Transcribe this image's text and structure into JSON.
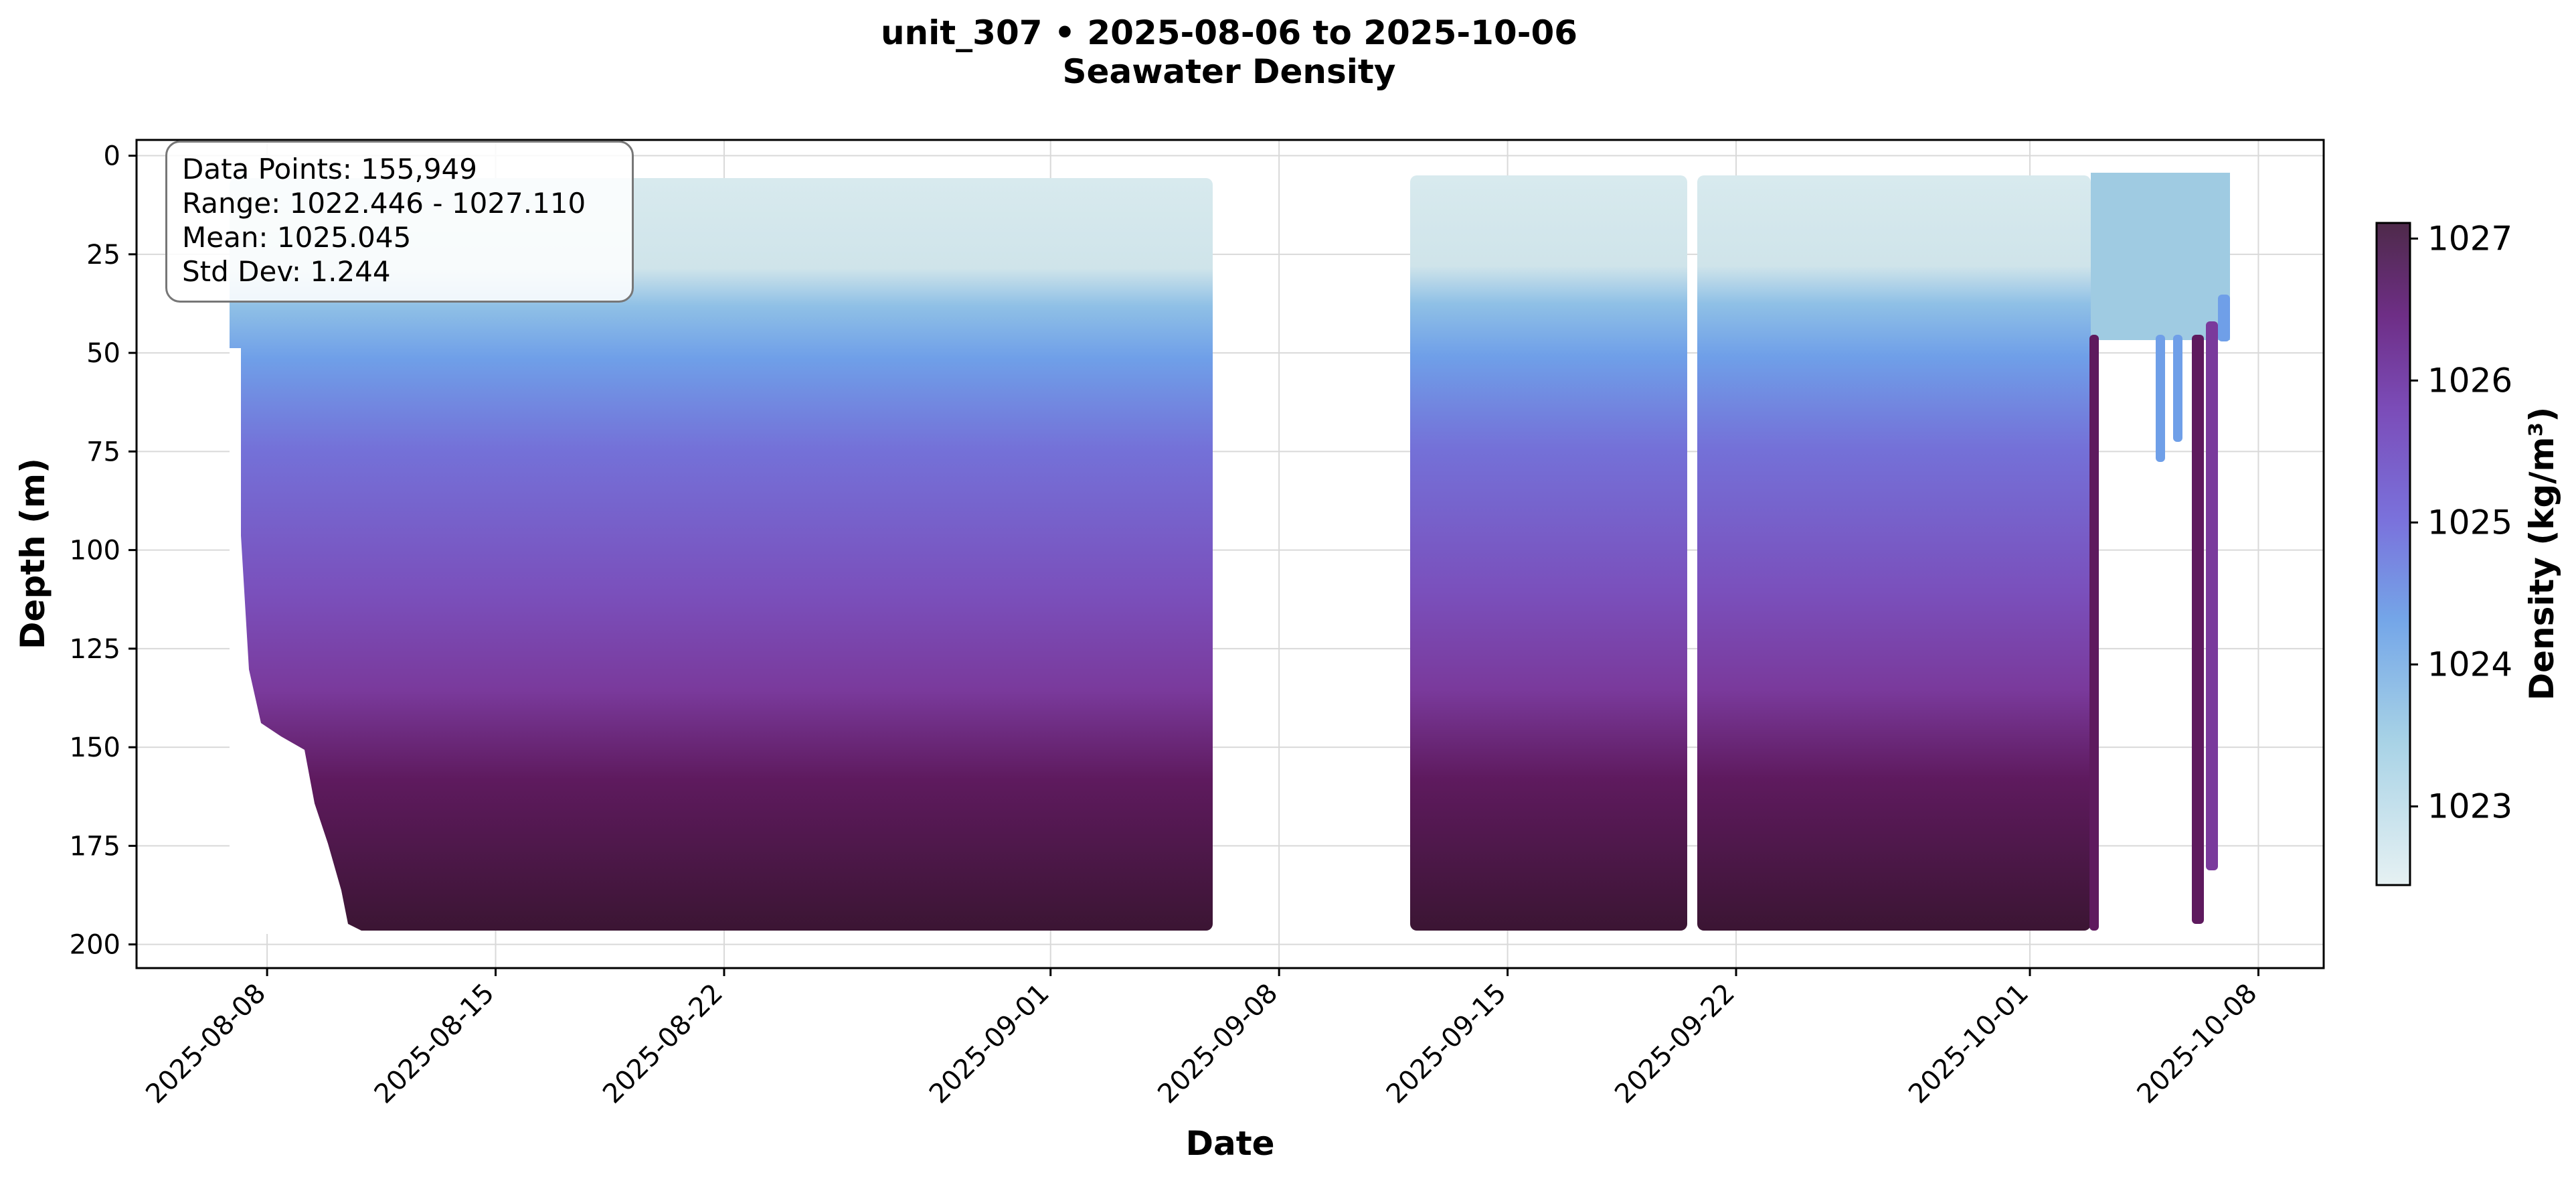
{
  "title": "unit_307 • 2025-08-06 to 2025-10-06",
  "subtitle": "Seawater Density",
  "stats": {
    "points_label": "Data Points: 155,949",
    "range_label": "Range: 1022.446 - 1027.110",
    "mean_label": "Mean: 1025.045",
    "std_label": "Std Dev: 1.244"
  },
  "chart_data": {
    "type": "scatter",
    "title": "unit_307 • 2025-08-06 to 2025-10-06",
    "subtitle": "Seawater Density",
    "xlabel": "Date",
    "ylabel": "Depth (m)",
    "colorbar_label": "Density (kg/m³)",
    "x_ticks": [
      "2025-08-08",
      "2025-08-15",
      "2025-08-22",
      "2025-09-01",
      "2025-09-08",
      "2025-09-15",
      "2025-09-22",
      "2025-10-01",
      "2025-10-08"
    ],
    "y_ticks": [
      0,
      25,
      50,
      75,
      100,
      125,
      150,
      175,
      200
    ],
    "colorbar_ticks": [
      1023,
      1024,
      1025,
      1026,
      1027
    ],
    "xlim": [
      "2025-08-04",
      "2025-10-10"
    ],
    "ylim": [
      206,
      -4
    ],
    "y_inverted": true,
    "clim": [
      1022.446,
      1027.11
    ],
    "grid": true,
    "colormap": [
      "#e0eef0",
      "#a8d4e0",
      "#6ea6e6",
      "#7a70d6",
      "#7a4bb0",
      "#5e1a5c",
      "#3a1530"
    ],
    "series": [
      {
        "segments": [
          {
            "start": "2025-08-07",
            "end": "2025-09-05",
            "min_depth": 5,
            "max_depth": 197
          },
          {
            "start": "2025-09-11",
            "end": "2025-09-19",
            "min_depth": 5,
            "max_depth": 197
          },
          {
            "start": "2025-09-20",
            "end": "2025-10-02",
            "min_depth": 5,
            "max_depth": 197
          },
          {
            "start": "2025-10-02",
            "end": "2025-10-06",
            "min_depth": 5,
            "max_depth": 195
          }
        ]
      }
    ]
  }
}
